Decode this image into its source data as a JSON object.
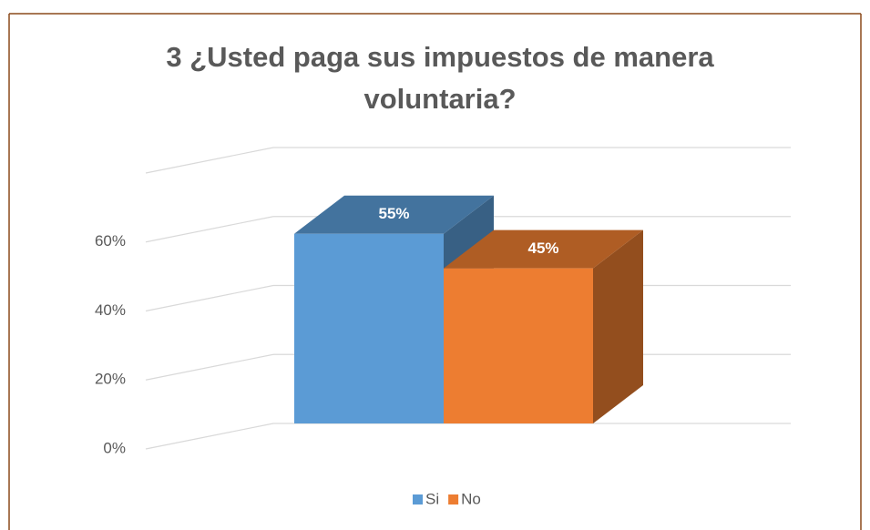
{
  "chart_data": {
    "type": "bar",
    "title": "3 ¿Usted paga sus impuestos de manera voluntaria?",
    "series": [
      {
        "name": "Si",
        "color": "#5b9bd5",
        "values": [
          55
        ],
        "value_labels": [
          "55%"
        ]
      },
      {
        "name": "No",
        "color": "#ed7d31",
        "values": [
          45
        ],
        "value_labels": [
          "45%"
        ]
      }
    ],
    "ylim": [
      0,
      80
    ],
    "yticks": [
      {
        "value": 0,
        "label": "0%"
      },
      {
        "value": 20,
        "label": "20%"
      },
      {
        "value": 40,
        "label": "40%"
      },
      {
        "value": 60,
        "label": "60%"
      }
    ],
    "grid": true,
    "legend": "bottom"
  }
}
